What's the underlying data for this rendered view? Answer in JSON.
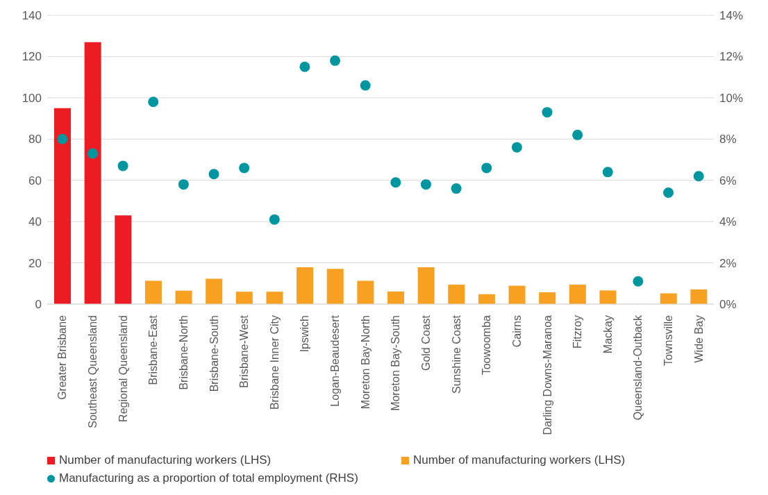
{
  "chart_data": {
    "type": "bar",
    "categories": [
      "Greater Brisbane",
      "Southeast Queensland",
      "Regional Queensland",
      "Brisbane-East",
      "Brisbane-North",
      "Brisbane-South",
      "Brisbane-West",
      "Brisbane Inner City",
      "Ipswich",
      "Logan-Beaudesert",
      "Moreton Bay-North",
      "Moreton Bay-South",
      "Gold Coast",
      "Sunshine Coast",
      "Toowoomba",
      "Cairns",
      "Darling Downs-Maranoa",
      "Fitzroy",
      "Mackay",
      "Queensland-Outback",
      "Townsville",
      "Wide Bay"
    ],
    "series": [
      {
        "name": "Number of manufacturing workers (LHS)",
        "color": "#ed1c24",
        "values": [
          95,
          127,
          43,
          null,
          null,
          null,
          null,
          null,
          null,
          null,
          null,
          null,
          null,
          null,
          null,
          null,
          null,
          null,
          null,
          null,
          null,
          null
        ]
      },
      {
        "name": "Number of manufacturing workers (LHS)",
        "color": "#f7a021",
        "values": [
          null,
          null,
          null,
          11.3,
          6.5,
          12.3,
          6,
          6,
          17.8,
          17.1,
          11.3,
          6.1,
          17.8,
          9.4,
          4.8,
          8.9,
          5.7,
          9.4,
          6.6,
          null,
          5.2,
          7.1
        ]
      },
      {
        "name": "Manufacturing as a proportion of total employment (RHS)",
        "type": "scatter",
        "axis": "y2",
        "color": "#0096a0",
        "values": [
          8.0,
          7.3,
          6.7,
          9.8,
          5.8,
          6.3,
          6.6,
          4.1,
          11.5,
          11.8,
          10.6,
          5.9,
          5.8,
          5.6,
          6.6,
          7.6,
          9.3,
          8.2,
          6.4,
          1.1,
          5.4,
          6.2
        ]
      }
    ],
    "ylim": [
      0,
      140
    ],
    "yticks": [
      0,
      20,
      40,
      60,
      80,
      100,
      120,
      140
    ],
    "y2lim": [
      0,
      14
    ],
    "y2ticks": [
      {
        "value": 0,
        "label": "0%"
      },
      {
        "value": 2,
        "label": "2%"
      },
      {
        "value": 4,
        "label": "4%"
      },
      {
        "value": 6,
        "label": "6%"
      },
      {
        "value": 8,
        "label": "8%"
      },
      {
        "value": 10,
        "label": "10%"
      },
      {
        "value": 12,
        "label": "12%"
      },
      {
        "value": 14,
        "label": "14%"
      }
    ],
    "grid": "y",
    "legend": "bottom",
    "marker": "circle"
  }
}
